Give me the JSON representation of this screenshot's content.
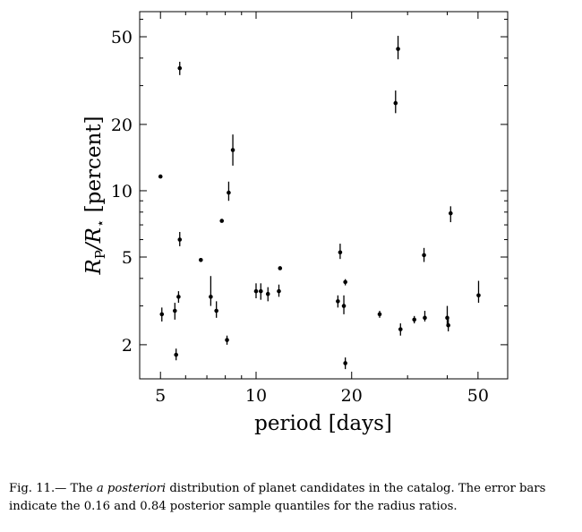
{
  "chart_data": {
    "type": "scatter",
    "xlabel": "period [days]",
    "ylabel_main": "R",
    "ylabel_sub1": "P",
    "ylabel_mid": "/R",
    "ylabel_sub2": "⋆",
    "ylabel_unit": " [percent]",
    "xscale": "log",
    "yscale": "log",
    "xlim": [
      4.3,
      62
    ],
    "ylim": [
      1.4,
      65
    ],
    "xticks": [
      5,
      10,
      20,
      50
    ],
    "xtick_labels": [
      "5",
      "10",
      "20",
      "50"
    ],
    "yticks": [
      2,
      5,
      10,
      20,
      50
    ],
    "ytick_labels": [
      "2",
      "5",
      "10",
      "20",
      "50"
    ],
    "grid": false,
    "points": [
      {
        "x": 5.0,
        "y": 11.6,
        "ylo": 11.6,
        "yhi": 11.6
      },
      {
        "x": 5.05,
        "y": 2.75,
        "ylo": 2.55,
        "yhi": 2.95
      },
      {
        "x": 5.55,
        "y": 2.85,
        "ylo": 2.6,
        "yhi": 3.1
      },
      {
        "x": 5.6,
        "y": 1.8,
        "ylo": 1.7,
        "yhi": 1.92
      },
      {
        "x": 5.7,
        "y": 3.3,
        "ylo": 3.1,
        "yhi": 3.5
      },
      {
        "x": 5.75,
        "y": 36,
        "ylo": 33.5,
        "yhi": 38.5
      },
      {
        "x": 5.75,
        "y": 6.0,
        "ylo": 5.6,
        "yhi": 6.5
      },
      {
        "x": 6.7,
        "y": 4.85,
        "ylo": 4.75,
        "yhi": 4.95
      },
      {
        "x": 7.2,
        "y": 3.3,
        "ylo": 3.0,
        "yhi": 4.1
      },
      {
        "x": 7.5,
        "y": 2.85,
        "ylo": 2.65,
        "yhi": 3.15
      },
      {
        "x": 7.8,
        "y": 7.3,
        "ylo": 7.3,
        "yhi": 7.3
      },
      {
        "x": 8.1,
        "y": 2.1,
        "ylo": 2.0,
        "yhi": 2.2
      },
      {
        "x": 8.2,
        "y": 9.8,
        "ylo": 9.0,
        "yhi": 11.0
      },
      {
        "x": 8.45,
        "y": 15.3,
        "ylo": 13.0,
        "yhi": 18.0
      },
      {
        "x": 10.0,
        "y": 3.5,
        "ylo": 3.25,
        "yhi": 3.8
      },
      {
        "x": 10.35,
        "y": 3.5,
        "ylo": 3.2,
        "yhi": 3.8
      },
      {
        "x": 10.9,
        "y": 3.4,
        "ylo": 3.15,
        "yhi": 3.65
      },
      {
        "x": 11.8,
        "y": 3.5,
        "ylo": 3.3,
        "yhi": 3.75
      },
      {
        "x": 11.9,
        "y": 4.45,
        "ylo": 4.4,
        "yhi": 4.5
      },
      {
        "x": 18.1,
        "y": 3.15,
        "ylo": 2.95,
        "yhi": 3.35
      },
      {
        "x": 18.4,
        "y": 5.25,
        "ylo": 4.9,
        "yhi": 5.75
      },
      {
        "x": 18.9,
        "y": 3.0,
        "ylo": 2.75,
        "yhi": 3.35
      },
      {
        "x": 19.1,
        "y": 3.85,
        "ylo": 3.72,
        "yhi": 3.97
      },
      {
        "x": 19.1,
        "y": 1.65,
        "ylo": 1.55,
        "yhi": 1.75
      },
      {
        "x": 24.5,
        "y": 2.75,
        "ylo": 2.65,
        "yhi": 2.85
      },
      {
        "x": 27.5,
        "y": 25,
        "ylo": 22.5,
        "yhi": 28.5
      },
      {
        "x": 28.0,
        "y": 44,
        "ylo": 39.5,
        "yhi": 50.5
      },
      {
        "x": 28.5,
        "y": 2.35,
        "ylo": 2.2,
        "yhi": 2.5
      },
      {
        "x": 31.5,
        "y": 2.6,
        "ylo": 2.5,
        "yhi": 2.7
      },
      {
        "x": 34.0,
        "y": 2.65,
        "ylo": 2.55,
        "yhi": 2.85
      },
      {
        "x": 33.8,
        "y": 5.1,
        "ylo": 4.75,
        "yhi": 5.5
      },
      {
        "x": 40.0,
        "y": 2.65,
        "ylo": 2.45,
        "yhi": 3.0
      },
      {
        "x": 40.3,
        "y": 2.45,
        "ylo": 2.3,
        "yhi": 2.65
      },
      {
        "x": 41.0,
        "y": 7.9,
        "ylo": 7.2,
        "yhi": 8.5
      },
      {
        "x": 50.2,
        "y": 3.35,
        "ylo": 3.1,
        "yhi": 3.9
      }
    ]
  },
  "caption": {
    "prefix": "Fig. 11.— The ",
    "emphasis": "a posteriori",
    "suffix": " distribution of planet candidates in the catalog. The error bars indicate the 0.16 and 0.84 posterior sample quantiles for the radius ratios."
  }
}
